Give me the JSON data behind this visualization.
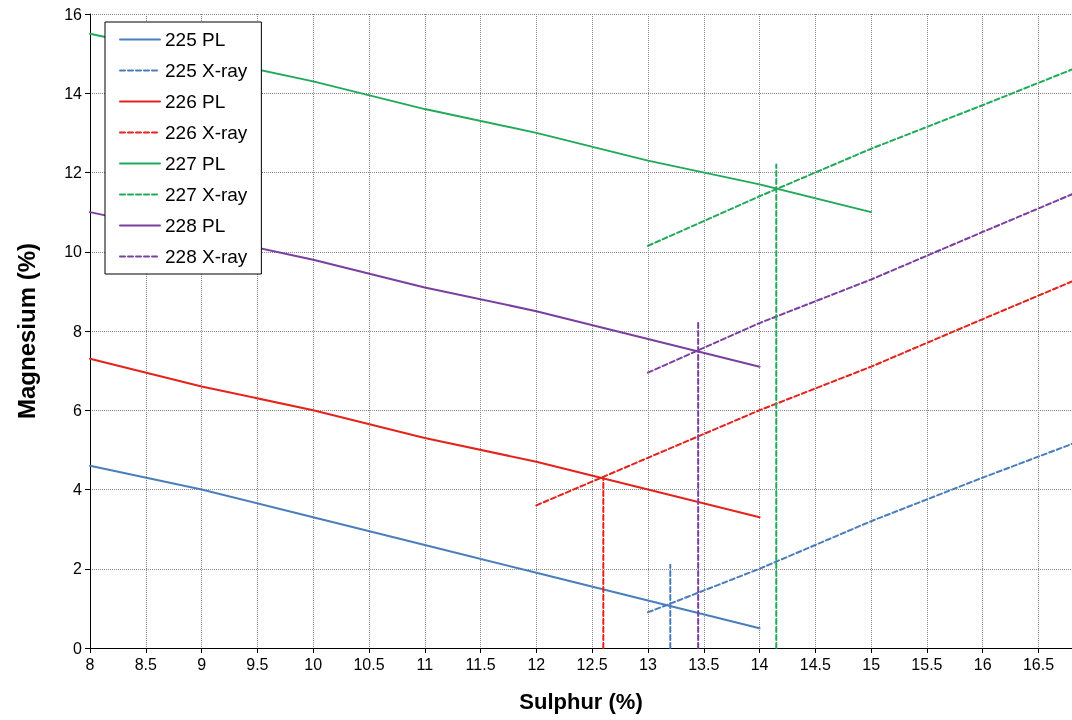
{
  "chart_data": {
    "type": "line",
    "xlabel": "Sulphur (%)",
    "ylabel": "Magnesium (%)",
    "xlim": [
      8,
      16.8
    ],
    "ylim": [
      0,
      16
    ],
    "xticks": [
      8,
      8.5,
      9,
      9.5,
      10,
      10.5,
      11,
      11.5,
      12,
      12.5,
      13,
      13.5,
      14,
      14.5,
      15,
      15.5,
      16,
      16.5
    ],
    "yticks": [
      0,
      2,
      4,
      6,
      8,
      10,
      12,
      14,
      16
    ],
    "grid": true,
    "legend": "top left",
    "marker": "none",
    "series": [
      {
        "name": "225 PL",
        "color": "#4a7ebb",
        "line_style": "solid",
        "x": [
          8,
          9,
          10,
          11,
          12,
          13,
          14
        ],
        "values": [
          4.6,
          4.0,
          3.3,
          2.6,
          1.9,
          1.2,
          0.5
        ]
      },
      {
        "name": "225 X-ray",
        "color": "#4a7ebb",
        "line_style": "dashed",
        "x": [
          13,
          14,
          15,
          16,
          16.8
        ],
        "values": [
          0.9,
          2.0,
          3.2,
          4.3,
          5.15
        ]
      },
      {
        "name": "226 PL",
        "color": "#e3231c",
        "line_style": "solid",
        "x": [
          8,
          9,
          10,
          11,
          12,
          13,
          14
        ],
        "values": [
          7.3,
          6.6,
          6.0,
          5.3,
          4.7,
          4.0,
          3.3
        ]
      },
      {
        "name": "226 X-ray",
        "color": "#e3231c",
        "line_style": "dashed",
        "x": [
          12,
          13,
          14,
          15,
          16,
          16.8
        ],
        "values": [
          3.6,
          4.8,
          6.0,
          7.1,
          8.3,
          9.25
        ]
      },
      {
        "name": "227 PL",
        "color": "#22a95a",
        "line_style": "solid",
        "x": [
          8,
          10,
          11,
          12,
          13,
          14,
          15
        ],
        "values": [
          15.5,
          14.3,
          13.6,
          13.0,
          12.3,
          11.7,
          11.0
        ]
      },
      {
        "name": "227 X-ray",
        "color": "#22a95a",
        "line_style": "dashed",
        "x": [
          13,
          14,
          15,
          16,
          16.8
        ],
        "values": [
          10.15,
          11.4,
          12.6,
          13.7,
          14.6
        ]
      },
      {
        "name": "228 PL",
        "color": "#7b3fa0",
        "line_style": "solid",
        "x": [
          8,
          10,
          11,
          12,
          13,
          14
        ],
        "values": [
          11.0,
          9.8,
          9.1,
          8.5,
          7.8,
          7.1
        ]
      },
      {
        "name": "228 X-ray",
        "color": "#7b3fa0",
        "line_style": "dashed",
        "x": [
          13,
          14,
          15,
          16,
          16.8
        ],
        "values": [
          6.95,
          8.2,
          9.3,
          10.5,
          11.45
        ]
      },
      {
        "color": "#4a7ebb",
        "line_style": "dashed",
        "x": [
          13.2,
          13.2
        ],
        "values": [
          0,
          2.1
        ]
      },
      {
        "color": "#e3231c",
        "line_style": "dashed",
        "x": [
          12.6,
          12.6
        ],
        "values": [
          0,
          4.3
        ]
      },
      {
        "color": "#22a95a",
        "line_style": "dashed",
        "x": [
          14.15,
          14.15
        ],
        "values": [
          0,
          12.2
        ]
      },
      {
        "color": "#7b3fa0",
        "line_style": "dashed",
        "x": [
          13.45,
          13.45
        ],
        "values": [
          0,
          8.2
        ]
      }
    ]
  }
}
